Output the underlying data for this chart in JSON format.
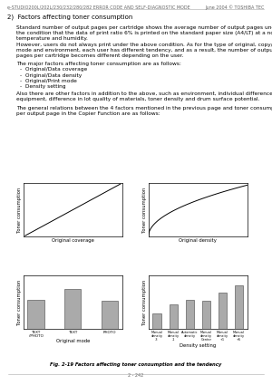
{
  "background": "#ffffff",
  "page_header_left": "e-STUDIO200L/202L/230/232/280/282 ERROR CODE AND SELF-DIAGNOSTIC MODE",
  "page_header_right": "June 2004 © TOSHIBA TEC",
  "page_number": "2 - 242",
  "section_number": "2)",
  "section_title": "Factors affecting toner consumption",
  "para1_lines": [
    "Standard number of output pages per cartridge shows the average number of output pages under",
    "the condition that the data of print ratio 6% is printed on the standard paper size (A4/LT) at a normal",
    "temperature and humidity.",
    "However, users do not always print under the above condition. As for the type of original, copy/print",
    "mode and environment, each user has different tendency, and as a result, the number of output",
    "pages per cartridge becomes different depending on the user."
  ],
  "para2_intro": "The major factors affecting toner consumption are as follows:",
  "bullets": [
    "Original/Data coverage",
    "Original/Data density",
    "Original/Print mode",
    "Density setting"
  ],
  "para3_lines": [
    "Also there are other factors in addition to the above, such as environment, individual difference of",
    "equipment, difference in lot quality of materials, toner density and drum surface potential."
  ],
  "para4_lines": [
    "The general relations between the 4 factors mentioned in the previous page and toner consumption",
    "per output page in the Copier Function are as follows:"
  ],
  "fig_caption": "Fig. 2-19 Factors affecting toner consumption and the tendency",
  "chart1_xlabel": "Original coverage",
  "chart1_ylabel": "Toner consumption",
  "chart2_xlabel": "Original density",
  "chart2_ylabel": "Toner consumption",
  "chart3_xlabel": "Original mode",
  "chart3_ylabel": "Toner consumption",
  "chart3_bars": [
    0.55,
    0.75,
    0.52
  ],
  "chart3_xlabels": [
    "TEXT\n/PHOTO",
    "TEXT",
    "PHOTO"
  ],
  "chart4_xlabel": "Density setting",
  "chart4_ylabel": "Toner consumption",
  "chart4_bars": [
    0.3,
    0.46,
    0.55,
    0.53,
    0.68,
    0.82
  ],
  "chart4_xlabels": [
    "Manual\ndensity\n-3",
    "Manual\ndensity\n-1",
    "Automatic\ndensity",
    "Manual\ndensity\nCenter",
    "Manual\ndensity\n+1",
    "Manual\ndensity\n+5"
  ],
  "bar_color": "#aaaaaa",
  "line_color": "#000000",
  "text_color": "#000000",
  "font_size_title": 5.0,
  "font_size_body": 4.2,
  "font_size_axis": 3.8,
  "font_size_tick": 3.0,
  "font_size_footer": 3.5,
  "font_size_caption": 3.8
}
